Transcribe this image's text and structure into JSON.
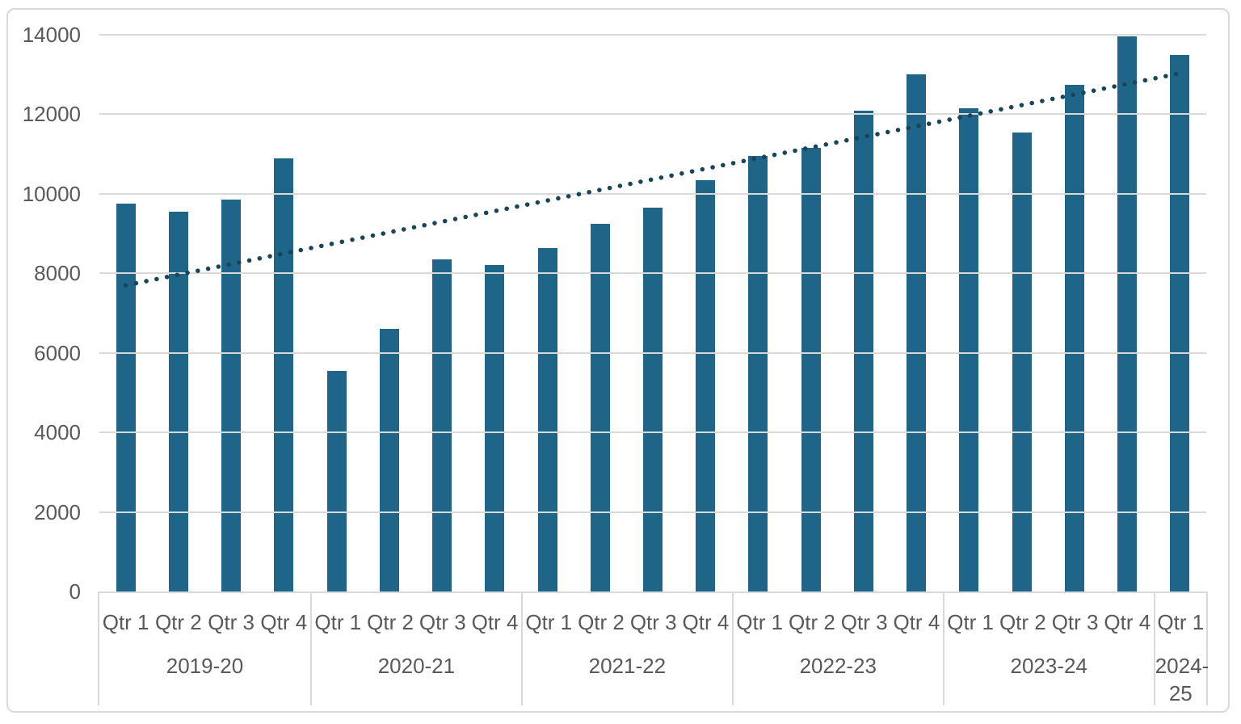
{
  "chart_data": {
    "type": "bar",
    "y_axis": {
      "min": 0,
      "max": 14000,
      "tick_step": 2000,
      "ticks": [
        "0",
        "2000",
        "4000",
        "6000",
        "8000",
        "10000",
        "12000",
        "14000"
      ]
    },
    "x_axis": {
      "groups": [
        {
          "label": "2019-20",
          "quarters": [
            "Qtr 1",
            "Qtr 2",
            "Qtr 3",
            "Qtr 4"
          ],
          "values": [
            9750,
            9550,
            9850,
            10900
          ]
        },
        {
          "label": "2020-21",
          "quarters": [
            "Qtr 1",
            "Qtr 2",
            "Qtr 3",
            "Qtr 4"
          ],
          "values": [
            5550,
            6600,
            8350,
            8200
          ]
        },
        {
          "label": "2021-22",
          "quarters": [
            "Qtr 1",
            "Qtr 2",
            "Qtr 3",
            "Qtr 4"
          ],
          "values": [
            8630,
            9250,
            9650,
            10350
          ]
        },
        {
          "label": "2022-23",
          "quarters": [
            "Qtr 1",
            "Qtr 2",
            "Qtr 3",
            "Qtr 4"
          ],
          "values": [
            10950,
            11150,
            12100,
            13000
          ]
        },
        {
          "label": "2023-24",
          "quarters": [
            "Qtr 1",
            "Qtr 2",
            "Qtr 3",
            "Qtr 4"
          ],
          "values": [
            12150,
            11550,
            12750,
            13950
          ]
        },
        {
          "label": "2024-25",
          "quarters": [
            "Qtr 1"
          ],
          "values": [
            13500
          ]
        }
      ]
    },
    "trendline": {
      "type": "linear",
      "style": "dotted",
      "start_value": 7700,
      "end_value": 13030
    },
    "legend": false,
    "grid": true,
    "colors": {
      "bar": "#1F6587",
      "trendline": "#19455A",
      "gridline": "#D9D9D9",
      "axis_text": "#595959",
      "chart_border": "#D9D9D9",
      "background": "#FFFFFF"
    }
  }
}
